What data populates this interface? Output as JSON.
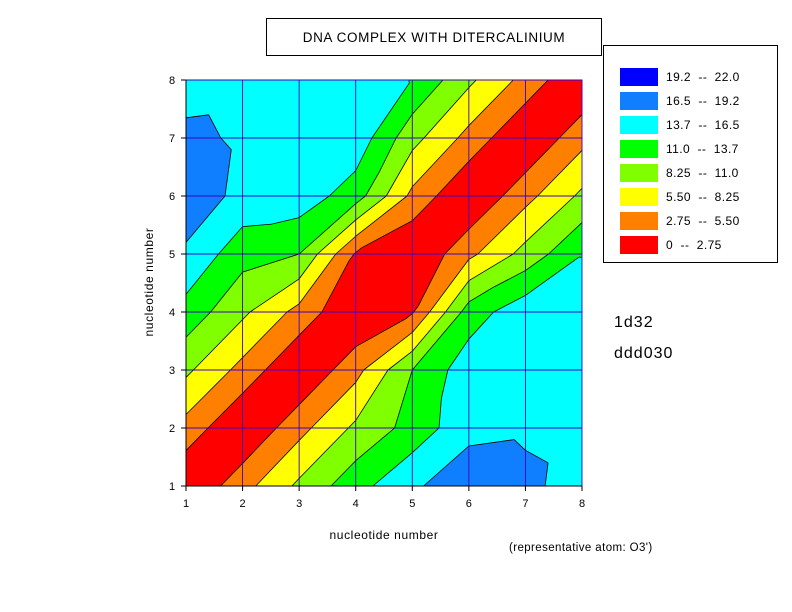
{
  "chart_data": {
    "type": "heatmap",
    "title": "DNA COMPLEX WITH DITERCALINIUM",
    "xlabel": "nucleotide number",
    "ylabel": "nucleotide number",
    "x_ticks": [
      "1",
      "2",
      "3",
      "4",
      "5",
      "6",
      "7",
      "8"
    ],
    "y_ticks": [
      "1",
      "2",
      "3",
      "4",
      "5",
      "6",
      "7",
      "8"
    ],
    "xlim": [
      1,
      8
    ],
    "ylim": [
      1,
      8
    ],
    "grid": true,
    "legend_position": "top-right",
    "legend": [
      {
        "label": "19.2  --  22.0",
        "color": "#0000ff"
      },
      {
        "label": "16.5  --  19.2",
        "color": "#0f7fff"
      },
      {
        "label": "13.7  --  16.5",
        "color": "#00ffff"
      },
      {
        "label": "11.0  --  13.7",
        "color": "#00ff00"
      },
      {
        "label": "8.25  --  11.0",
        "color": "#80ff00"
      },
      {
        "label": "5.50  --  8.25",
        "color": "#ffff00"
      },
      {
        "label": "2.75  --  5.50",
        "color": "#ff8000"
      },
      {
        "label": "0  --  2.75",
        "color": "#ff0000"
      }
    ],
    "levels": [
      0,
      2.75,
      5.5,
      8.25,
      11.0,
      13.7,
      16.5,
      19.2,
      22.0
    ],
    "matrix": [
      [
        0.0,
        4.5,
        8.8,
        12.7,
        16.0,
        18.5,
        17.3,
        15.0
      ],
      [
        4.5,
        0.0,
        4.6,
        8.8,
        12.0,
        15.6,
        16.0,
        15.3
      ],
      [
        8.8,
        4.6,
        0.0,
        4.6,
        11.0,
        15.3,
        15.3,
        15.3
      ],
      [
        12.7,
        8.8,
        4.6,
        0.0,
        2.5,
        12.3,
        15.5,
        15.3
      ],
      [
        16.0,
        12.0,
        11.0,
        2.5,
        0.0,
        4.8,
        9.2,
        13.6
      ],
      [
        18.5,
        15.6,
        15.3,
        12.3,
        4.8,
        0.0,
        4.6,
        8.8
      ],
      [
        17.3,
        16.0,
        15.3,
        15.5,
        9.2,
        4.6,
        0.0,
        4.6
      ],
      [
        15.0,
        15.3,
        15.3,
        15.3,
        13.6,
        8.8,
        4.6,
        0.0
      ]
    ],
    "note": "(representative atom: O3')"
  },
  "labels": {
    "pdb_id": "1d32",
    "ndb_id": "ddd030"
  }
}
